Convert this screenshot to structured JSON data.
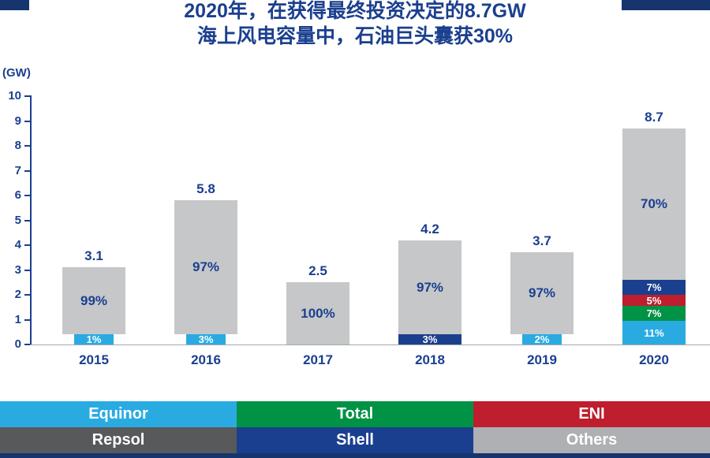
{
  "title": {
    "line1": "2020年，在获得最终投资决定的8.7GW",
    "line2": "海上风电容量中，石油巨头囊获30%"
  },
  "colors": {
    "navy": "#1b3f8f",
    "deco": "#16356e",
    "baseline": "#a6a8ab"
  },
  "chart_data": {
    "type": "bar",
    "stacked": true,
    "title": "2020年，在获得最终投资决定的8.7GW海上风电容量中，石油巨头囊获30%",
    "unit_label": "(GW)",
    "ylim": [
      0,
      10
    ],
    "yticks": [
      0,
      1,
      2,
      3,
      4,
      5,
      6,
      7,
      8,
      9,
      10
    ],
    "categories": [
      "2015",
      "2016",
      "2017",
      "2018",
      "2019",
      "2020"
    ],
    "totals": [
      3.1,
      5.8,
      2.5,
      4.2,
      3.7,
      8.7
    ],
    "series": [
      {
        "name": "Equinor",
        "color": "#29abe2",
        "pct_by_year": [
          1,
          3,
          0,
          0,
          2,
          11
        ]
      },
      {
        "name": "Total",
        "color": "#009245",
        "pct_by_year": [
          0,
          0,
          0,
          0,
          0,
          7
        ]
      },
      {
        "name": "ENI",
        "color": "#be1e2d",
        "pct_by_year": [
          0,
          0,
          0,
          0,
          0,
          5
        ]
      },
      {
        "name": "Shell",
        "color": "#1b3f8f",
        "pct_by_year": [
          0,
          0,
          0,
          3,
          0,
          7
        ]
      },
      {
        "name": "Others",
        "color": "#c6c7c9",
        "pct_by_year": [
          99,
          97,
          100,
          97,
          97,
          70
        ]
      }
    ],
    "legend_position": "bottom",
    "grid": false
  },
  "legend": {
    "rows": [
      [
        {
          "label": "Equinor",
          "color": "#29abe2"
        },
        {
          "label": "Total",
          "color": "#009245"
        },
        {
          "label": "ENI",
          "color": "#be1e2d"
        }
      ],
      [
        {
          "label": "Repsol",
          "color": "#58595b"
        },
        {
          "label": "Shell",
          "color": "#1b3f8f"
        },
        {
          "label": "Others",
          "color": "#aeb0b3"
        }
      ]
    ]
  }
}
